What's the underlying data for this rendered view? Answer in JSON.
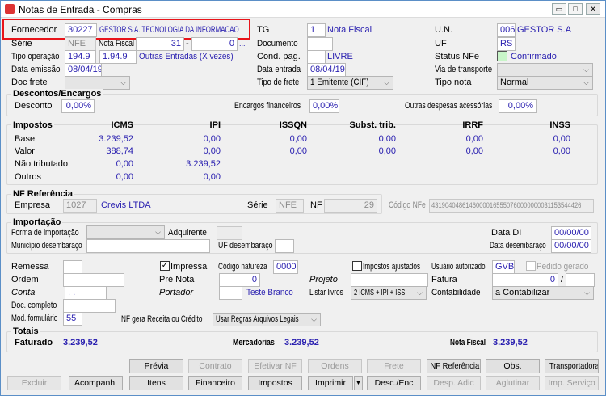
{
  "window": {
    "title": "Notas de Entrada - Compras",
    "minimize": "▭",
    "maximize": "□",
    "close": "✕"
  },
  "header": {
    "fornecedor": {
      "label": "Fornecedor",
      "code": "30227",
      "name": "GESTOR S.A. TECNOLOGIA DA INFORMACAO"
    },
    "serie": {
      "label": "Série",
      "value": "NFE"
    },
    "nota_fiscal": {
      "label": "Nota Fiscal",
      "number": "31",
      "dash": "-",
      "sub": "0",
      "lookup": "..."
    },
    "tipo_operacao": {
      "label": "Tipo operação",
      "code": "194.9",
      "cfop": "1.94.9",
      "desc": "Outras Entradas (X vezes)"
    },
    "data_emissao": {
      "label": "Data emissão",
      "value": "08/04/19"
    },
    "doc_frete": {
      "label": "Doc frete",
      "value": ""
    },
    "tg": {
      "label": "TG",
      "value": "1",
      "desc": "Nota Fiscal"
    },
    "documento": {
      "label": "Documento",
      "value": ""
    },
    "cond_pag": {
      "label": "Cond. pag.",
      "value": "",
      "desc": "LIVRE"
    },
    "data_entrada": {
      "label": "Data entrada",
      "value": "08/04/19"
    },
    "tipo_frete": {
      "label": "Tipo de frete",
      "value": "1 Emitente (CIF)"
    },
    "un": {
      "label": "U.N.",
      "value": "006",
      "desc": "GESTOR S.A"
    },
    "uf": {
      "label": "UF",
      "value": "RS"
    },
    "status_nfe": {
      "label": "Status NFe",
      "value": "Confirmado",
      "color": "#c8f5c8"
    },
    "via_transporte": {
      "label": "Via de transporte",
      "value": ""
    },
    "tipo_nota": {
      "label": "Tipo nota",
      "value": "Normal"
    }
  },
  "descontos": {
    "title": "Descontos/Encargos",
    "desconto": {
      "label": "Desconto",
      "value": "0,00%"
    },
    "encargos": {
      "label": "Encargos financeiros",
      "value": "0,00%"
    },
    "outras": {
      "label": "Outras despesas acessórias",
      "value": "0,00%"
    }
  },
  "impostos": {
    "title": "Impostos",
    "columns": [
      "ICMS",
      "IPI",
      "ISSQN",
      "Subst. trib.",
      "IRRF",
      "INSS"
    ],
    "rows": [
      {
        "label": "Base",
        "values": [
          "3.239,52",
          "0,00",
          "0,00",
          "0,00",
          "0,00",
          "0,00"
        ]
      },
      {
        "label": "Valor",
        "values": [
          "388,74",
          "0,00",
          "0,00",
          "0,00",
          "0,00",
          "0,00"
        ]
      },
      {
        "label": "Não tributado",
        "values": [
          "0,00",
          "3.239,52"
        ]
      },
      {
        "label": "Outros",
        "values": [
          "0,00",
          "0,00"
        ]
      }
    ]
  },
  "nf_referencia": {
    "title": "NF Referência",
    "empresa_label": "Empresa",
    "empresa_code": "1027",
    "empresa_name": "Crevis LTDA",
    "serie_label": "Série",
    "serie": "NFE",
    "nf_label": "NF",
    "nf": "29",
    "codigo_label": "Código NFe",
    "codigo": "43190404861460000165550760000000031153544426"
  },
  "importacao": {
    "title": "Importação",
    "forma_label": "Forma de importação",
    "forma": "",
    "adquirente_label": "Adquirente",
    "adquirente": "",
    "data_di_label": "Data DI",
    "data_di": "00/00/00",
    "municipio_label": "Município desembaraço",
    "municipio": "",
    "uf_label": "UF desembaraço",
    "uf": "",
    "data_desemb_label": "Data desembaraço",
    "data_desemb": "00/00/00"
  },
  "misc": {
    "remessa": {
      "label": "Remessa",
      "value": ""
    },
    "impressa": {
      "label": "Impressa",
      "checked": true
    },
    "codigo_natureza": {
      "label": "Código natureza",
      "value": "0000"
    },
    "impostos_ajustados": {
      "label": "Impostos ajustados",
      "checked": false
    },
    "usuario": {
      "label": "Usuário autorizado",
      "value": "GVB"
    },
    "pedido_gerado": {
      "label": "Pedido gerado",
      "checked": false
    },
    "ordem": {
      "label": "Ordem",
      "value": ""
    },
    "pre_nota": {
      "label": "Pré Nota",
      "value": "0"
    },
    "projeto": {
      "label": "Projeto",
      "value": ""
    },
    "fatura": {
      "label": "Fatura",
      "value": "0",
      "slash": "/",
      "sub": ""
    },
    "conta": {
      "label": "Conta",
      "value": ". ."
    },
    "portador": {
      "label": "Portador",
      "value": "",
      "desc": "Teste Branco"
    },
    "listar_livros": {
      "label": "Listar livros",
      "value": "2 ICMS + IPI + ISS"
    },
    "contabilidade": {
      "label": "Contabilidade",
      "value": "a Contabilizar"
    },
    "doc_completo": {
      "label": "Doc. completo",
      "value": ""
    },
    "mod_formulario": {
      "label": "Mod. formulário",
      "value": "55"
    },
    "nf_gera": {
      "label": "NF gera Receita ou Crédito",
      "value": "Usar Regras Arquivos Legais"
    }
  },
  "totais": {
    "title": "Totais",
    "faturado_label": "Faturado",
    "faturado": "3.239,52",
    "mercadorias_label": "Mercadorias",
    "mercadorias": "3.239,52",
    "nf_label": "Nota Fiscal",
    "nf": "3.239,52"
  },
  "buttons_row1": [
    {
      "label": "Prévia",
      "enabled": true
    },
    {
      "label": "Contrato",
      "enabled": false
    },
    {
      "label": "Efetivar NF",
      "enabled": false
    },
    {
      "label": "Ordens",
      "enabled": false
    },
    {
      "label": "Frete",
      "enabled": false
    },
    {
      "label": "NF Referência",
      "enabled": true
    },
    {
      "label": "Obs.",
      "enabled": true
    },
    {
      "label": "Transportadora",
      "enabled": true
    }
  ],
  "buttons_row2": [
    {
      "label": "Excluir",
      "enabled": false
    },
    {
      "label": "Acompanh.",
      "enabled": true
    },
    {
      "label": "Itens",
      "enabled": true
    },
    {
      "label": "Financeiro",
      "enabled": true
    },
    {
      "label": "Impostos",
      "enabled": true
    },
    {
      "label": "Imprimir",
      "enabled": true
    },
    {
      "label": "Desc./Enc",
      "enabled": true
    },
    {
      "label": "Desp. Adic",
      "enabled": false
    },
    {
      "label": "Aglutinar",
      "enabled": false
    },
    {
      "label": "Imp. Serviço",
      "enabled": false
    }
  ]
}
